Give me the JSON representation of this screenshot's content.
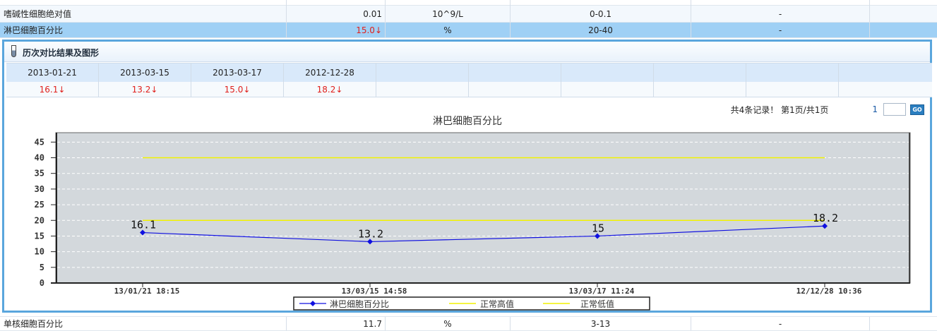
{
  "rows": [
    {
      "name": "嗜碱性细胞绝对值",
      "value": "0.01",
      "unit": "10^9/L",
      "range": "0-0.1",
      "flag": "-"
    },
    {
      "name": "淋巴细胞百分比",
      "value": "15.0↓",
      "unit": "%",
      "range": "20-40",
      "flag": "-"
    },
    {
      "name": "单核细胞百分比",
      "value": "11.7",
      "unit": "%",
      "range": "3-13",
      "flag": "-"
    }
  ],
  "panel": {
    "title": "历次对比结果及图形",
    "history": [
      {
        "date": "2013-01-21",
        "value": "16.1↓"
      },
      {
        "date": "2013-03-15",
        "value": "13.2↓"
      },
      {
        "date": "2013-03-17",
        "value": "15.0↓"
      },
      {
        "date": "2012-12-28",
        "value": "18.2↓"
      }
    ],
    "pager": {
      "info": "共4条记录！ 第1页/共1页",
      "page": "1",
      "go": "GO"
    }
  },
  "colors": {
    "series": "#1010e0",
    "limits": "#f2f200",
    "plot_bg": "#d3d8dc",
    "selected_row": "#9fd0f5",
    "low_flag": "#e0201c"
  },
  "chart_data": {
    "type": "line",
    "title": "淋巴细胞百分比",
    "categories": [
      "13/01/21 18:15",
      "13/03/15 14:58",
      "13/03/17 11:24",
      "12/12/28 10:36"
    ],
    "series": [
      {
        "name": "淋巴细胞百分比",
        "values": [
          16.1,
          13.2,
          15,
          18.2
        ],
        "labels": [
          "16.1",
          "13.2",
          "15",
          "18.2"
        ]
      },
      {
        "name": "正常高值",
        "values": [
          40,
          40,
          40,
          40
        ]
      },
      {
        "name": "正常低值",
        "values": [
          20,
          20,
          20,
          20
        ]
      }
    ],
    "yticks": [
      "0",
      "5",
      "10",
      "15",
      "20",
      "25",
      "30",
      "35",
      "40",
      "45"
    ],
    "ylim": [
      0,
      48
    ],
    "grid": true,
    "legend": "bottom-center"
  }
}
